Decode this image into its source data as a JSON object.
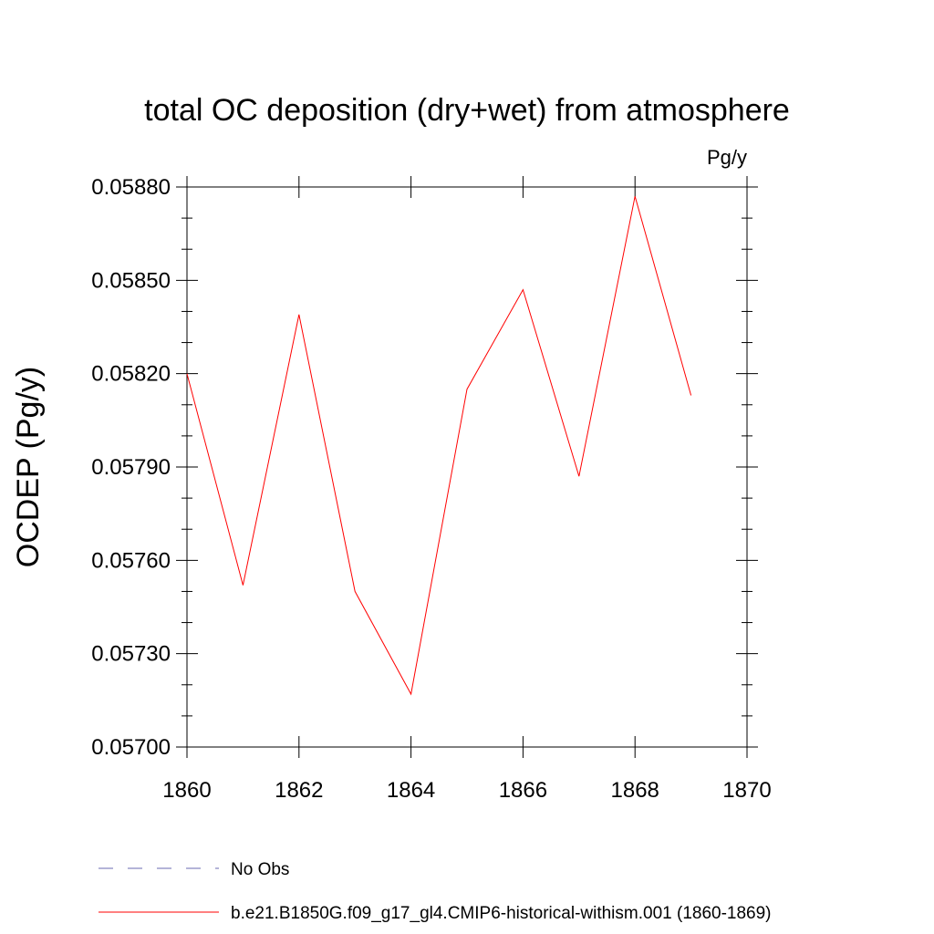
{
  "chart_data": {
    "type": "line",
    "title": "total OC deposition (dry+wet) from atmosphere",
    "units_label": "Pg/y",
    "ylabel": "OCDEP  (Pg/y)",
    "xlabel": "",
    "xlim": [
      1860,
      1870
    ],
    "ylim": [
      0.057,
      0.0588
    ],
    "x_ticks": [
      "1860",
      "1862",
      "1864",
      "1866",
      "1868",
      "1870"
    ],
    "y_ticks": [
      "0.05700",
      "0.05730",
      "0.05760",
      "0.05790",
      "0.05820",
      "0.05850",
      "0.05880"
    ],
    "x": [
      1860,
      1861,
      1862,
      1863,
      1864,
      1865,
      1866,
      1867,
      1868,
      1869
    ],
    "series": [
      {
        "name": "b.e21.B1850G.f09_g17_gl4.CMIP6-historical-withism.001 (1860-1869)",
        "color": "#ff0000",
        "style": "solid",
        "values": [
          0.0582,
          0.05752,
          0.05839,
          0.0575,
          0.05717,
          0.05815,
          0.05847,
          0.05787,
          0.05877,
          0.05813
        ]
      }
    ],
    "legend": [
      {
        "label": "No Obs",
        "color": "#6a6ab0",
        "style": "dashed"
      },
      {
        "label": "b.e21.B1850G.f09_g17_gl4.CMIP6-historical-withism.001 (1860-1869)",
        "color": "#ff0000",
        "style": "solid"
      }
    ],
    "legend_position": "bottom",
    "grid": false
  }
}
